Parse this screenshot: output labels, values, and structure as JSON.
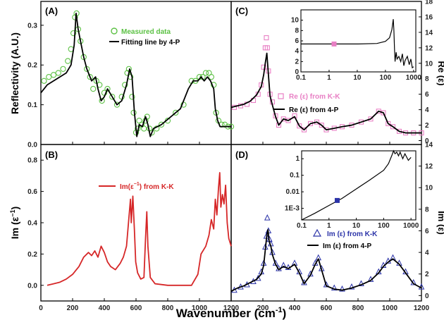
{
  "chart_data": [
    {
      "panel": "A",
      "type": "line",
      "ylabel": "Reflectivity (A.U.)",
      "xlim": [
        0,
        1200
      ],
      "ylim": [
        0,
        0.36
      ],
      "yticks": [
        "0.0",
        "0.1",
        "0.2",
        "0.3"
      ],
      "series": [
        {
          "name": "Measured data",
          "style": "open-circles",
          "color": "#5cc144",
          "x": [
            20,
            50,
            80,
            110,
            140,
            170,
            190,
            205,
            215,
            225,
            235,
            250,
            270,
            290,
            310,
            330,
            350,
            370,
            385,
            400,
            420,
            450,
            480,
            510,
            530,
            545,
            555,
            565,
            575,
            585,
            600,
            610,
            620,
            635,
            650,
            660,
            670,
            685,
            700,
            730,
            760,
            800,
            850,
            900,
            950,
            975,
            1000,
            1020,
            1040,
            1060,
            1075,
            1090,
            1105,
            1120,
            1140,
            1160,
            1180,
            1200
          ],
          "y": [
            0.16,
            0.17,
            0.175,
            0.18,
            0.19,
            0.21,
            0.24,
            0.28,
            0.32,
            0.33,
            0.29,
            0.26,
            0.22,
            0.19,
            0.17,
            0.14,
            0.16,
            0.15,
            0.11,
            0.13,
            0.14,
            0.12,
            0.1,
            0.12,
            0.15,
            0.18,
            0.19,
            0.17,
            0.12,
            0.08,
            0.03,
            0.04,
            0.06,
            0.05,
            0.04,
            0.06,
            0.07,
            0.04,
            0.03,
            0.04,
            0.05,
            0.06,
            0.08,
            0.1,
            0.16,
            0.16,
            0.17,
            0.17,
            0.18,
            0.18,
            0.17,
            0.15,
            0.08,
            0.06,
            0.05,
            0.05,
            0.045,
            0.045
          ]
        },
        {
          "name": "Fitting line by 4-P",
          "style": "line",
          "color": "#000000",
          "x": [
            0,
            40,
            80,
            120,
            160,
            190,
            210,
            222,
            235,
            250,
            270,
            290,
            320,
            345,
            360,
            380,
            400,
            420,
            450,
            480,
            510,
            540,
            560,
            575,
            590,
            605,
            620,
            640,
            660,
            675,
            690,
            710,
            760,
            820,
            880,
            930,
            960,
            990,
            1010,
            1030,
            1050,
            1070,
            1090,
            1100,
            1115,
            1130,
            1160,
            1200
          ],
          "y": [
            0.13,
            0.15,
            0.16,
            0.17,
            0.18,
            0.2,
            0.25,
            0.33,
            0.29,
            0.26,
            0.22,
            0.19,
            0.16,
            0.17,
            0.14,
            0.11,
            0.12,
            0.14,
            0.12,
            0.1,
            0.11,
            0.15,
            0.19,
            0.17,
            0.08,
            0.02,
            0.05,
            0.045,
            0.07,
            0.05,
            0.02,
            0.04,
            0.05,
            0.07,
            0.09,
            0.14,
            0.16,
            0.16,
            0.17,
            0.16,
            0.17,
            0.16,
            0.14,
            0.09,
            0.06,
            0.045,
            0.045,
            0.045
          ]
        }
      ]
    },
    {
      "panel": "B",
      "type": "line",
      "ylabel": "Im (ε⁻¹)",
      "xlim": [
        0,
        1200
      ],
      "ylim": [
        -0.1,
        0.9
      ],
      "yticks": [
        "0.0",
        "0.2",
        "0.4",
        "0.6",
        "0.8"
      ],
      "series": [
        {
          "name": "Im(ε⁻¹) from K-K",
          "style": "line",
          "color": "#d62728",
          "x": [
            40,
            80,
            120,
            160,
            200,
            240,
            270,
            300,
            320,
            340,
            360,
            380,
            400,
            420,
            440,
            470,
            500,
            520,
            540,
            555,
            565,
            570,
            580,
            590,
            598,
            610,
            630,
            650,
            660,
            668,
            675,
            690,
            720,
            800,
            900,
            950,
            990,
            1010,
            1040,
            1060,
            1075,
            1090,
            1100,
            1110,
            1120,
            1128,
            1135,
            1145,
            1155,
            1165,
            1175,
            1185,
            1200
          ],
          "y": [
            0.0,
            0.01,
            0.02,
            0.04,
            0.07,
            0.12,
            0.18,
            0.21,
            0.19,
            0.22,
            0.18,
            0.25,
            0.21,
            0.15,
            0.12,
            0.1,
            0.14,
            0.18,
            0.25,
            0.43,
            0.55,
            0.4,
            0.57,
            0.35,
            0.15,
            0.08,
            0.04,
            0.05,
            0.3,
            0.47,
            0.25,
            0.05,
            0.01,
            0.0,
            0.0,
            0.0,
            0.07,
            0.2,
            0.25,
            0.32,
            0.42,
            0.36,
            0.55,
            0.45,
            0.62,
            0.72,
            0.5,
            0.58,
            0.52,
            0.64,
            0.4,
            0.3,
            0.25
          ]
        }
      ]
    },
    {
      "panel": "C",
      "type": "line",
      "ylabel": "Re (ε)",
      "xlim": [
        0,
        1200
      ],
      "ylim": [
        -0.5,
        18
      ],
      "yticks": [
        "0",
        "2",
        "4",
        "6",
        "8",
        "10",
        "12",
        "14",
        "16",
        "18"
      ],
      "series": [
        {
          "name": "Re (ε) from K-K",
          "style": "open-squares",
          "color": "#e87fc4",
          "x": [
            20,
            60,
            100,
            140,
            170,
            190,
            205,
            215,
            222,
            228,
            235,
            245,
            260,
            280,
            300,
            330,
            360,
            400,
            430,
            460,
            500,
            540,
            570,
            600,
            650,
            700,
            760,
            820,
            880,
            930,
            960,
            990,
            1020,
            1060,
            1100,
            1150,
            1200
          ],
          "y": [
            4.3,
            4.5,
            4.7,
            5.2,
            6.0,
            7.2,
            9.5,
            12.0,
            13.3,
            12.0,
            9.0,
            6.0,
            5.0,
            3.2,
            2.0,
            2.8,
            2.6,
            3.2,
            1.9,
            1.4,
            2.2,
            2.4,
            2.0,
            1.4,
            1.6,
            1.8,
            2.0,
            2.4,
            2.8,
            3.8,
            3.6,
            2.2,
            1.8,
            1.2,
            1.0,
            1.0,
            1.0
          ]
        },
        {
          "name": "Re (ε) from 4-P",
          "style": "line",
          "color": "#000000",
          "x": [
            0,
            40,
            80,
            120,
            160,
            190,
            205,
            215,
            225,
            235,
            245,
            260,
            280,
            300,
            330,
            360,
            400,
            430,
            460,
            500,
            540,
            570,
            600,
            650,
            700,
            760,
            820,
            880,
            930,
            960,
            990,
            1020,
            1060,
            1100,
            1150,
            1200
          ],
          "y": [
            4.3,
            4.5,
            4.7,
            5.1,
            5.9,
            7.0,
            8.5,
            10.0,
            11.3,
            8.5,
            5.8,
            4.6,
            3.1,
            2.0,
            2.8,
            2.6,
            3.1,
            1.9,
            1.4,
            2.2,
            2.4,
            2.0,
            1.4,
            1.6,
            1.8,
            2.0,
            2.4,
            2.8,
            3.8,
            3.6,
            2.2,
            1.8,
            1.2,
            1.0,
            1.0,
            1.0
          ]
        }
      ],
      "inset": {
        "xscale": "log",
        "xlim": [
          0.1,
          1200
        ],
        "ylim": [
          0,
          12
        ],
        "xticks": [
          "0.1",
          "1",
          "10",
          "100",
          "1000"
        ],
        "yticks": [
          "0",
          "2",
          "4",
          "6",
          "8",
          "10"
        ],
        "series": [
          {
            "x": [
              0.1,
              1,
              10,
              50,
              100,
              140,
              170,
              190,
              200,
              210,
              220,
              240,
              260,
              300,
              350,
              400,
              450,
              500,
              600,
              700,
              800,
              900,
              1000
            ],
            "y": [
              5.4,
              5.4,
              5.4,
              5.5,
              5.9,
              6.6,
              8.2,
              10.2,
              8.0,
              4.5,
              2.0,
              3.8,
              2.5,
              3.0,
              2.0,
              3.5,
              1.2,
              2.2,
              3.0,
              1.4,
              2.5,
              0.8,
              1.0
            ]
          }
        ]
      }
    },
    {
      "panel": "D",
      "type": "line",
      "ylabel": "Im (ε)",
      "xlim": [
        0,
        1200
      ],
      "ylim": [
        -0.5,
        14
      ],
      "yticks": [
        "0",
        "2",
        "4",
        "6",
        "8",
        "10",
        "12",
        "14"
      ],
      "series": [
        {
          "name": "Im (ε) from K-K",
          "style": "open-triangles",
          "color": "#2b33a8",
          "x": [
            20,
            60,
            100,
            140,
            170,
            190,
            205,
            215,
            222,
            228,
            235,
            242,
            250,
            260,
            280,
            300,
            330,
            360,
            400,
            430,
            460,
            500,
            530,
            550,
            570,
            600,
            650,
            700,
            760,
            820,
            880,
            930,
            960,
            990,
            1020,
            1060,
            1100,
            1150,
            1200
          ],
          "y": [
            0.5,
            0.8,
            1.0,
            1.3,
            1.6,
            2.2,
            3.0,
            4.5,
            5.5,
            7.2,
            6.0,
            5.2,
            4.8,
            4.0,
            3.0,
            2.5,
            2.8,
            2.6,
            3.0,
            2.2,
            1.2,
            2.0,
            3.0,
            3.5,
            2.5,
            1.0,
            0.7,
            0.6,
            0.8,
            1.1,
            1.5,
            2.2,
            2.8,
            3.2,
            3.5,
            3.0,
            2.2,
            1.2,
            0.8
          ]
        },
        {
          "name": "Im (ε) from 4-P",
          "style": "line",
          "color": "#000000",
          "x": [
            0,
            40,
            80,
            120,
            160,
            190,
            205,
            215,
            225,
            232,
            240,
            250,
            260,
            280,
            300,
            330,
            360,
            400,
            430,
            460,
            500,
            530,
            550,
            570,
            600,
            650,
            700,
            760,
            820,
            880,
            930,
            960,
            990,
            1020,
            1060,
            1100,
            1150,
            1200
          ],
          "y": [
            0.4,
            0.7,
            0.9,
            1.2,
            1.5,
            2.0,
            2.8,
            4.2,
            5.6,
            6.1,
            5.0,
            4.6,
            3.8,
            2.9,
            2.4,
            2.7,
            2.5,
            2.9,
            2.1,
            1.1,
            1.9,
            2.9,
            3.4,
            2.4,
            0.9,
            0.6,
            0.5,
            0.7,
            1.0,
            1.4,
            2.1,
            2.7,
            3.1,
            3.4,
            2.9,
            2.1,
            1.1,
            0.7
          ]
        }
      ],
      "inset": {
        "xscale": "log",
        "yscale": "log",
        "xlim": [
          0.1,
          1500
        ],
        "ylim": [
          0.0002,
          3
        ],
        "xticks": [
          "0.1",
          "1",
          "10",
          "100",
          "1000"
        ],
        "yticks": [
          "1E-3",
          "0.01",
          "0.1",
          "1"
        ],
        "series": [
          {
            "x": [
              0.1,
              0.3,
              1,
              3,
              10,
              30,
              100,
              150,
              200,
              230,
              260,
              300,
              350,
              400,
              500,
              600,
              800,
              1000
            ],
            "y": [
              0.0002,
              0.0005,
              0.0015,
              0.004,
              0.015,
              0.05,
              0.2,
              0.5,
              1.6,
              3.0,
              2.0,
              2.5,
              1.5,
              2.5,
              1.0,
              2.0,
              0.8,
              1.2
            ]
          }
        ]
      }
    }
  ],
  "labels": {
    "panel_a": "(A)",
    "panel_b": "(B)",
    "panel_c": "(C)",
    "panel_d": "(D)",
    "xlabel": "Wavenumber (cm",
    "xlabel_sup": "-1",
    "xlabel_tail": ")",
    "x_ticks": [
      "0",
      "200",
      "400",
      "600",
      "800",
      "1000",
      "1200"
    ],
    "ylabel_a": "Reflectivity (A.U.)",
    "ylabel_b": "Im (ε",
    "ylabel_b_sup": "−1",
    "ylabel_b_tail": ")",
    "ylabel_c": "Re (ε)",
    "ylabel_d": "Im (ε)",
    "legend_a1": "Measured data",
    "legend_a2": "Fitting line by 4-P",
    "legend_b": "Im(ε",
    "legend_b_sup": "−1",
    "legend_b_tail": ") from K-K",
    "legend_c1": "Re (ε) from K-K",
    "legend_c2": "Re (ε) from 4-P",
    "legend_d1": "Im (ε) from K-K",
    "legend_d2": "Im (ε) from 4-P"
  }
}
